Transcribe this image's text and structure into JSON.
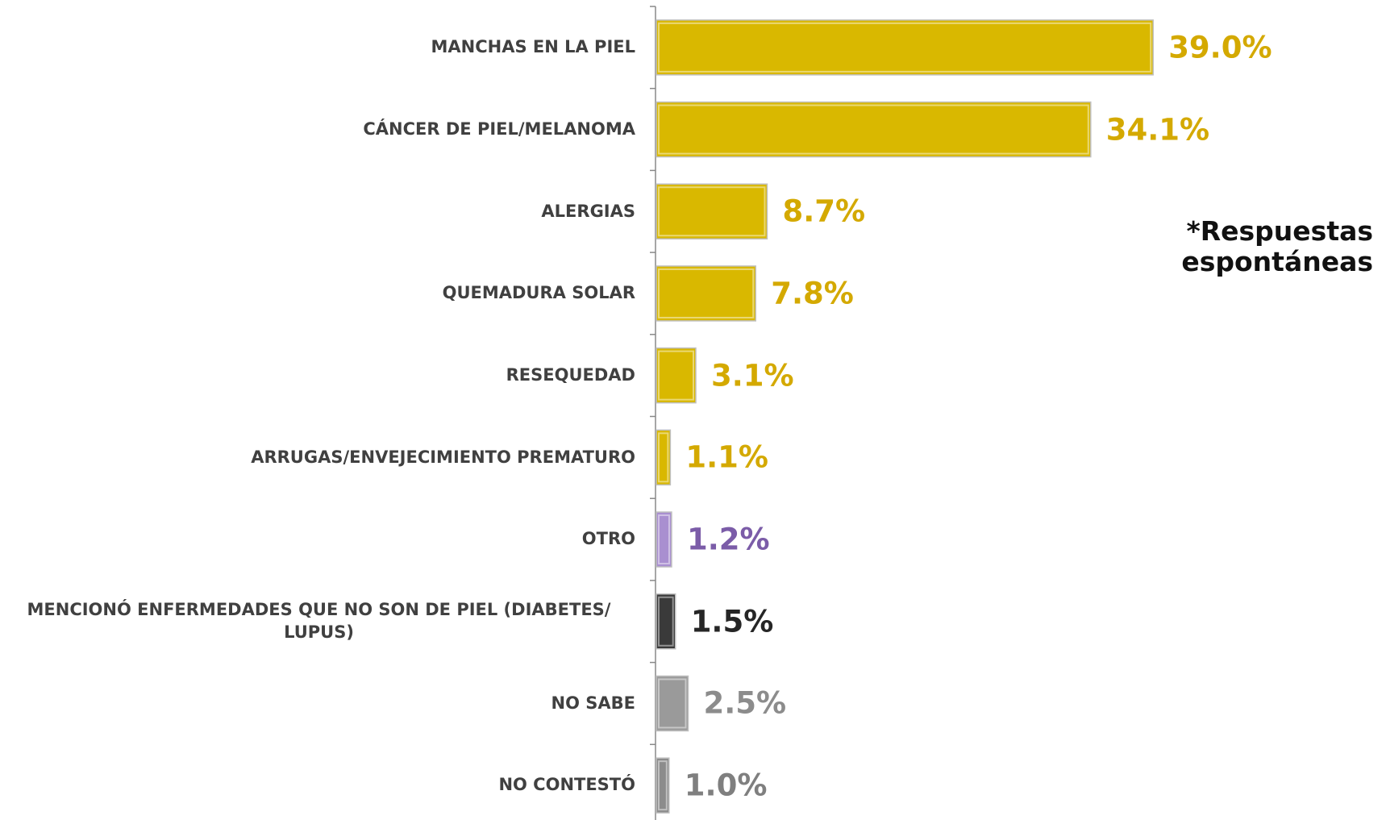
{
  "chart_data": {
    "type": "barh",
    "annotation": "*Respuestas espontáneas",
    "categories": [
      "MANCHAS EN LA PIEL",
      "CÁNCER DE PIEL/MELANOMA",
      "ALERGIAS",
      "QUEMADURA SOLAR",
      "RESEQUEDAD",
      "ARRUGAS/ENVEJECIMIENTO PREMATURO",
      "OTRO",
      "MENCIONÓ ENFERMEDADES QUE NO SON DE PIEL (DIABETES/ LUPUS)",
      "NO SABE",
      "NO CONTESTÓ"
    ],
    "values": [
      39.0,
      34.1,
      8.7,
      7.8,
      3.1,
      1.1,
      1.2,
      1.5,
      2.5,
      1.0
    ],
    "value_labels": [
      "39.0%",
      "34.1%",
      "8.7%",
      "7.8%",
      "3.1%",
      "1.1%",
      "1.2%",
      "1.5%",
      "2.5%",
      "1.0%"
    ],
    "colors": [
      "#d9b800",
      "#d9b800",
      "#d9b800",
      "#d9b800",
      "#d9b800",
      "#d9b800",
      "#a98fd0",
      "#3a3a3a",
      "#9a9a9a",
      "#8c8c8c"
    ],
    "label_colors": [
      "#d4a900",
      "#d4a900",
      "#d4a900",
      "#d4a900",
      "#d4a900",
      "#d4a900",
      "#7b5ca8",
      "#262626",
      "#8c8c8c",
      "#7f7f7f"
    ]
  }
}
